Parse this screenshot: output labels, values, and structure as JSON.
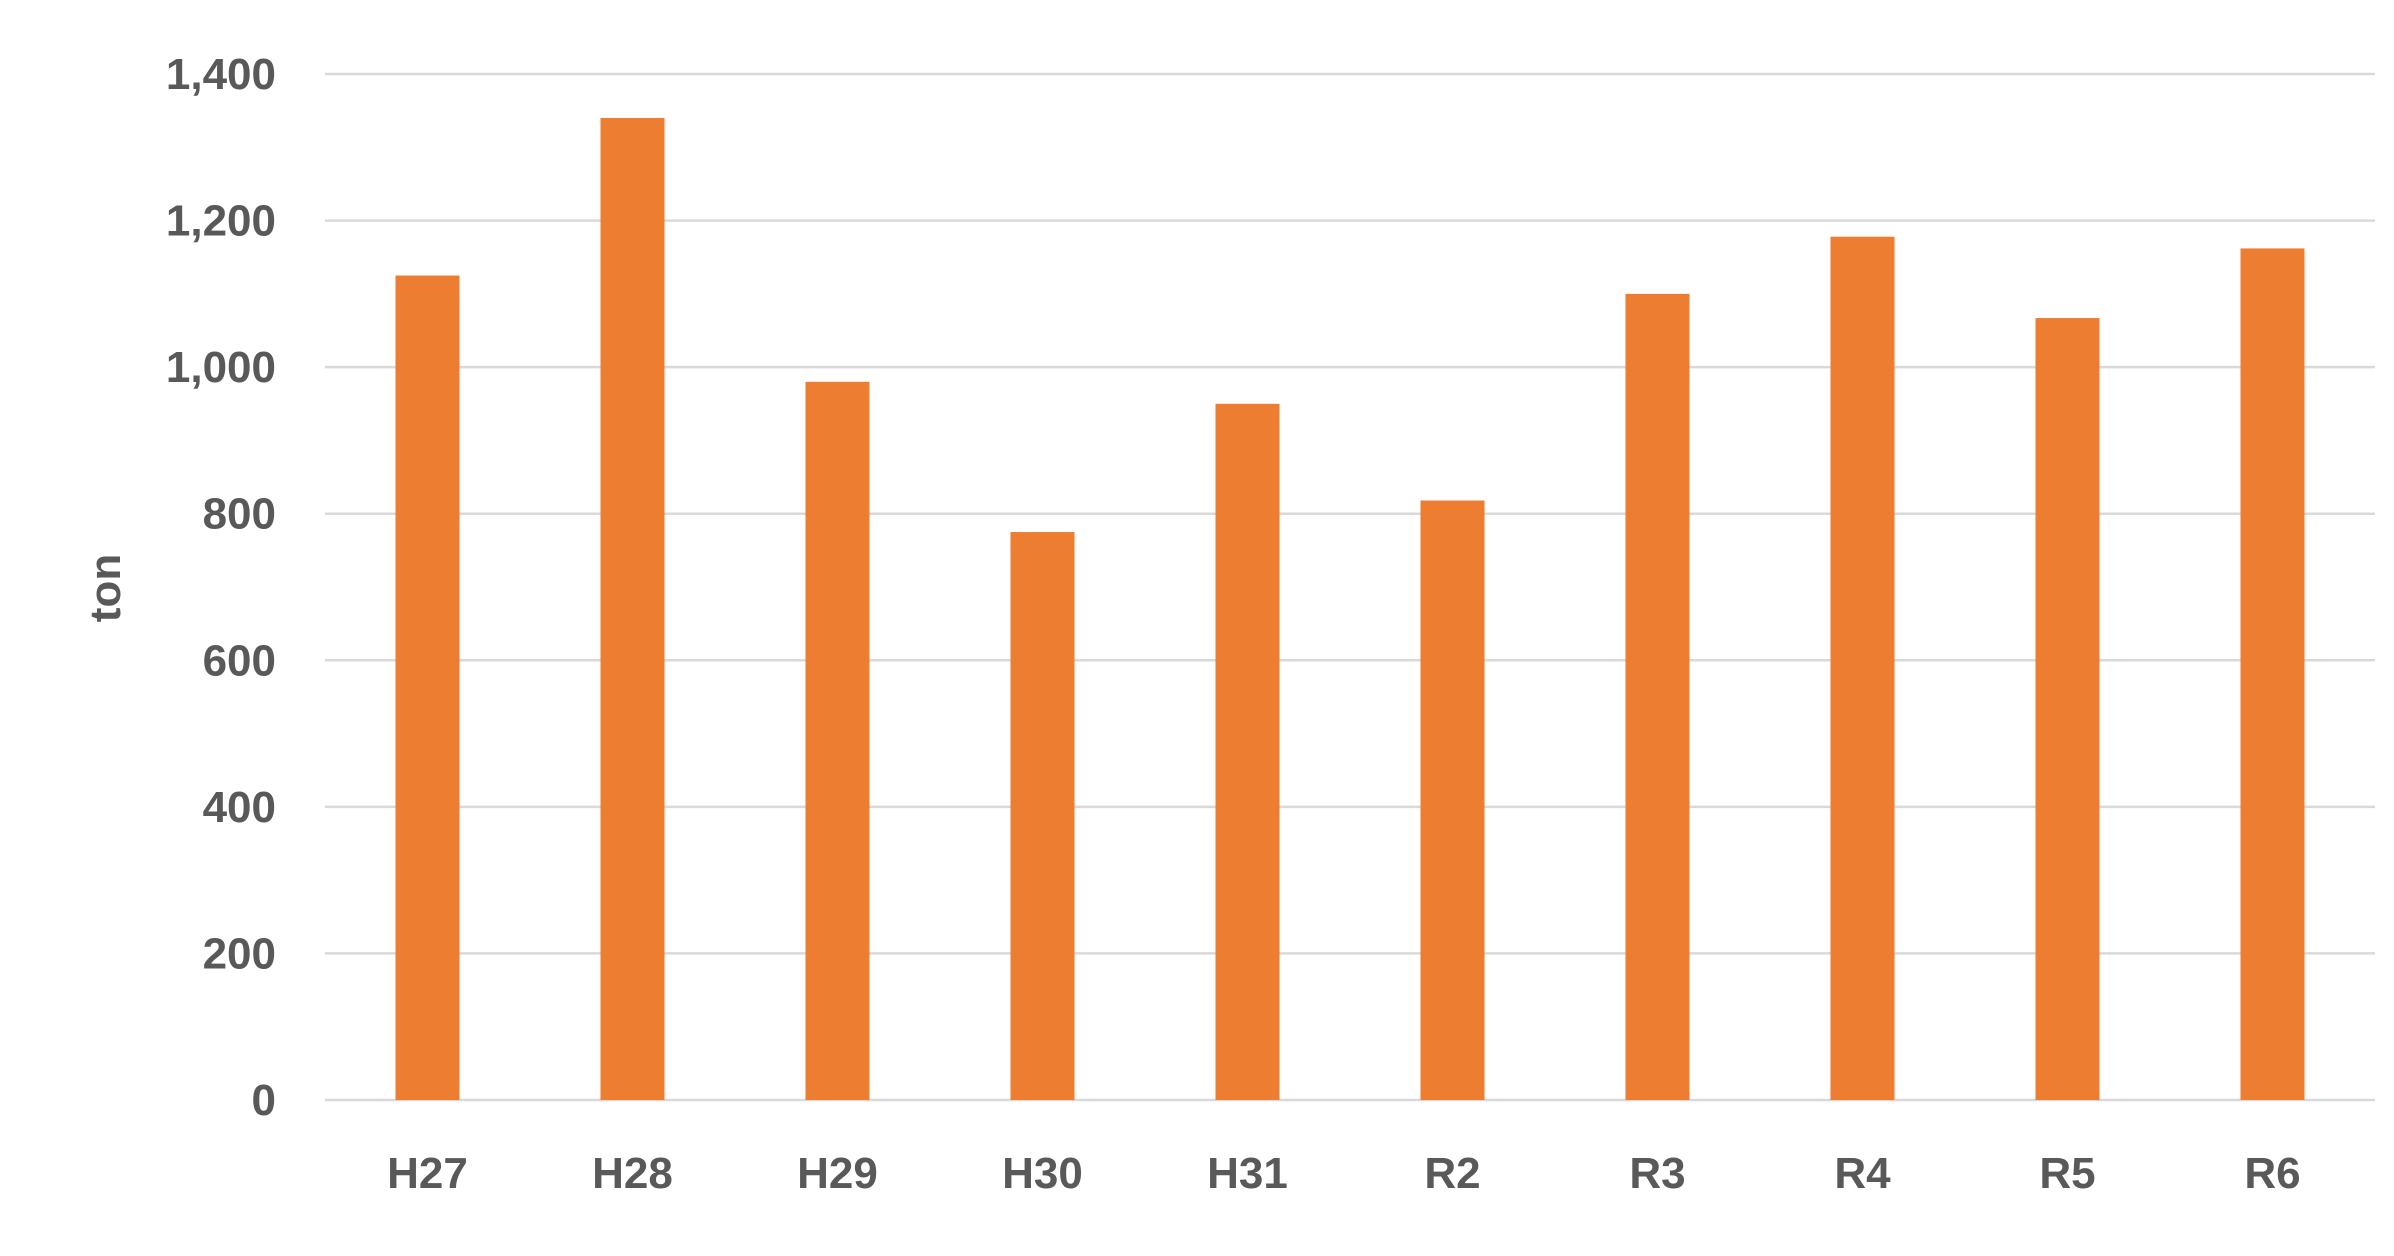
{
  "chart_data": {
    "type": "bar",
    "title": "",
    "xlabel": "",
    "ylabel": "ton",
    "categories": [
      "H27",
      "H28",
      "H29",
      "H30",
      "H31",
      "R2",
      "R3",
      "R4",
      "R5",
      "R6"
    ],
    "values": [
      1125,
      1340,
      980,
      775,
      950,
      818,
      1100,
      1178,
      1067,
      1162
    ],
    "ylim": [
      0,
      1400
    ],
    "yticks": [
      0,
      200,
      400,
      600,
      800,
      1000,
      1200,
      1400
    ],
    "ytick_labels": [
      "0",
      "200",
      "400",
      "600",
      "800",
      "1,000",
      "1,200",
      "1,400"
    ],
    "grid": true,
    "legend": "none",
    "colors": {
      "bar": "#ED7D31",
      "grid": "#D9D9D9",
      "text": "#595959"
    }
  }
}
